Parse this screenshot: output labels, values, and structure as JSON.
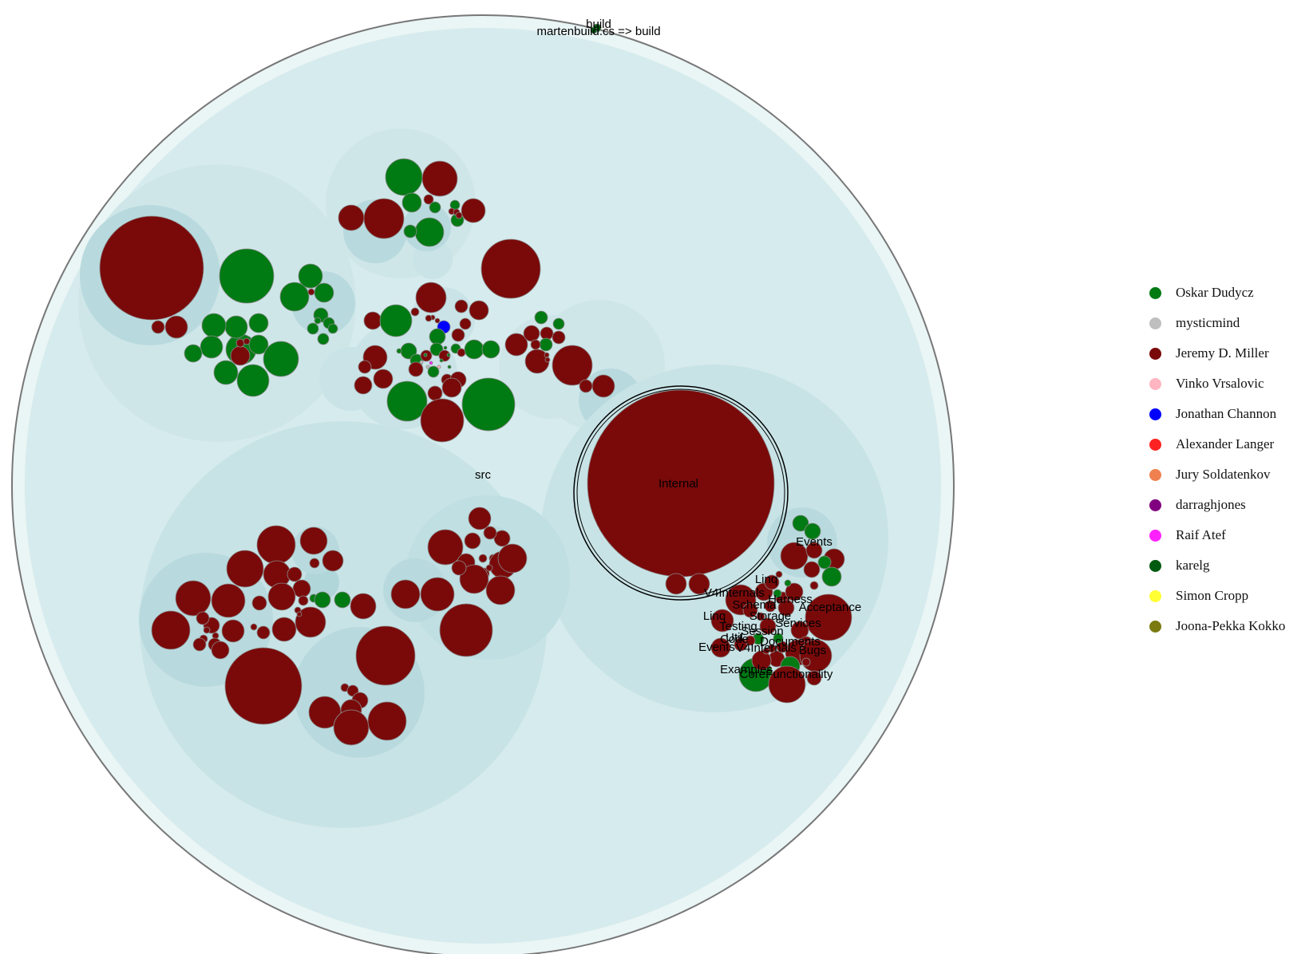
{
  "legend": [
    {
      "name": "Oskar Dudycz",
      "color": "#007a13"
    },
    {
      "name": "mysticmind",
      "color": "#bfbfbf"
    },
    {
      "name": "Jeremy D. Miller",
      "color": "#7a0a0a"
    },
    {
      "name": "Vinko Vrsalovic",
      "color": "#ffb6c1"
    },
    {
      "name": "Jonathan Channon",
      "color": "#0000ff"
    },
    {
      "name": "Alexander Langer",
      "color": "#ff2222"
    },
    {
      "name": "Jury Soldatenkov",
      "color": "#f08050"
    },
    {
      "name": "darraghjones",
      "color": "#800080"
    },
    {
      "name": "Raif Atef",
      "color": "#ff22ff"
    },
    {
      "name": "karelg",
      "color": "#005a0f"
    },
    {
      "name": "Simon Cropp",
      "color": "#ffff33"
    },
    {
      "name": "Joona-Pekka Kokko",
      "color": "#7a7a10"
    }
  ],
  "folder_labels": {
    "build": "build",
    "build_file": "martenbuild.cs => build",
    "src": "src",
    "internal": "Internal",
    "events": "Events",
    "linq": "Linq",
    "v4internals": "V4Internals",
    "acceptance": "Acceptance",
    "events2": "Events",
    "v4internals2": "V4Internals",
    "documents": "Documents",
    "code": "Code",
    "bugs": "Bugs",
    "examples": "Examples",
    "core_functionality": "CoreFunctionality",
    "linq2": "Linq",
    "harness": "Harness",
    "services": "Services",
    "schema": "Schema",
    "session": "Session",
    "storage": "Storage",
    "util": "Util",
    "testing": "Testing"
  }
}
